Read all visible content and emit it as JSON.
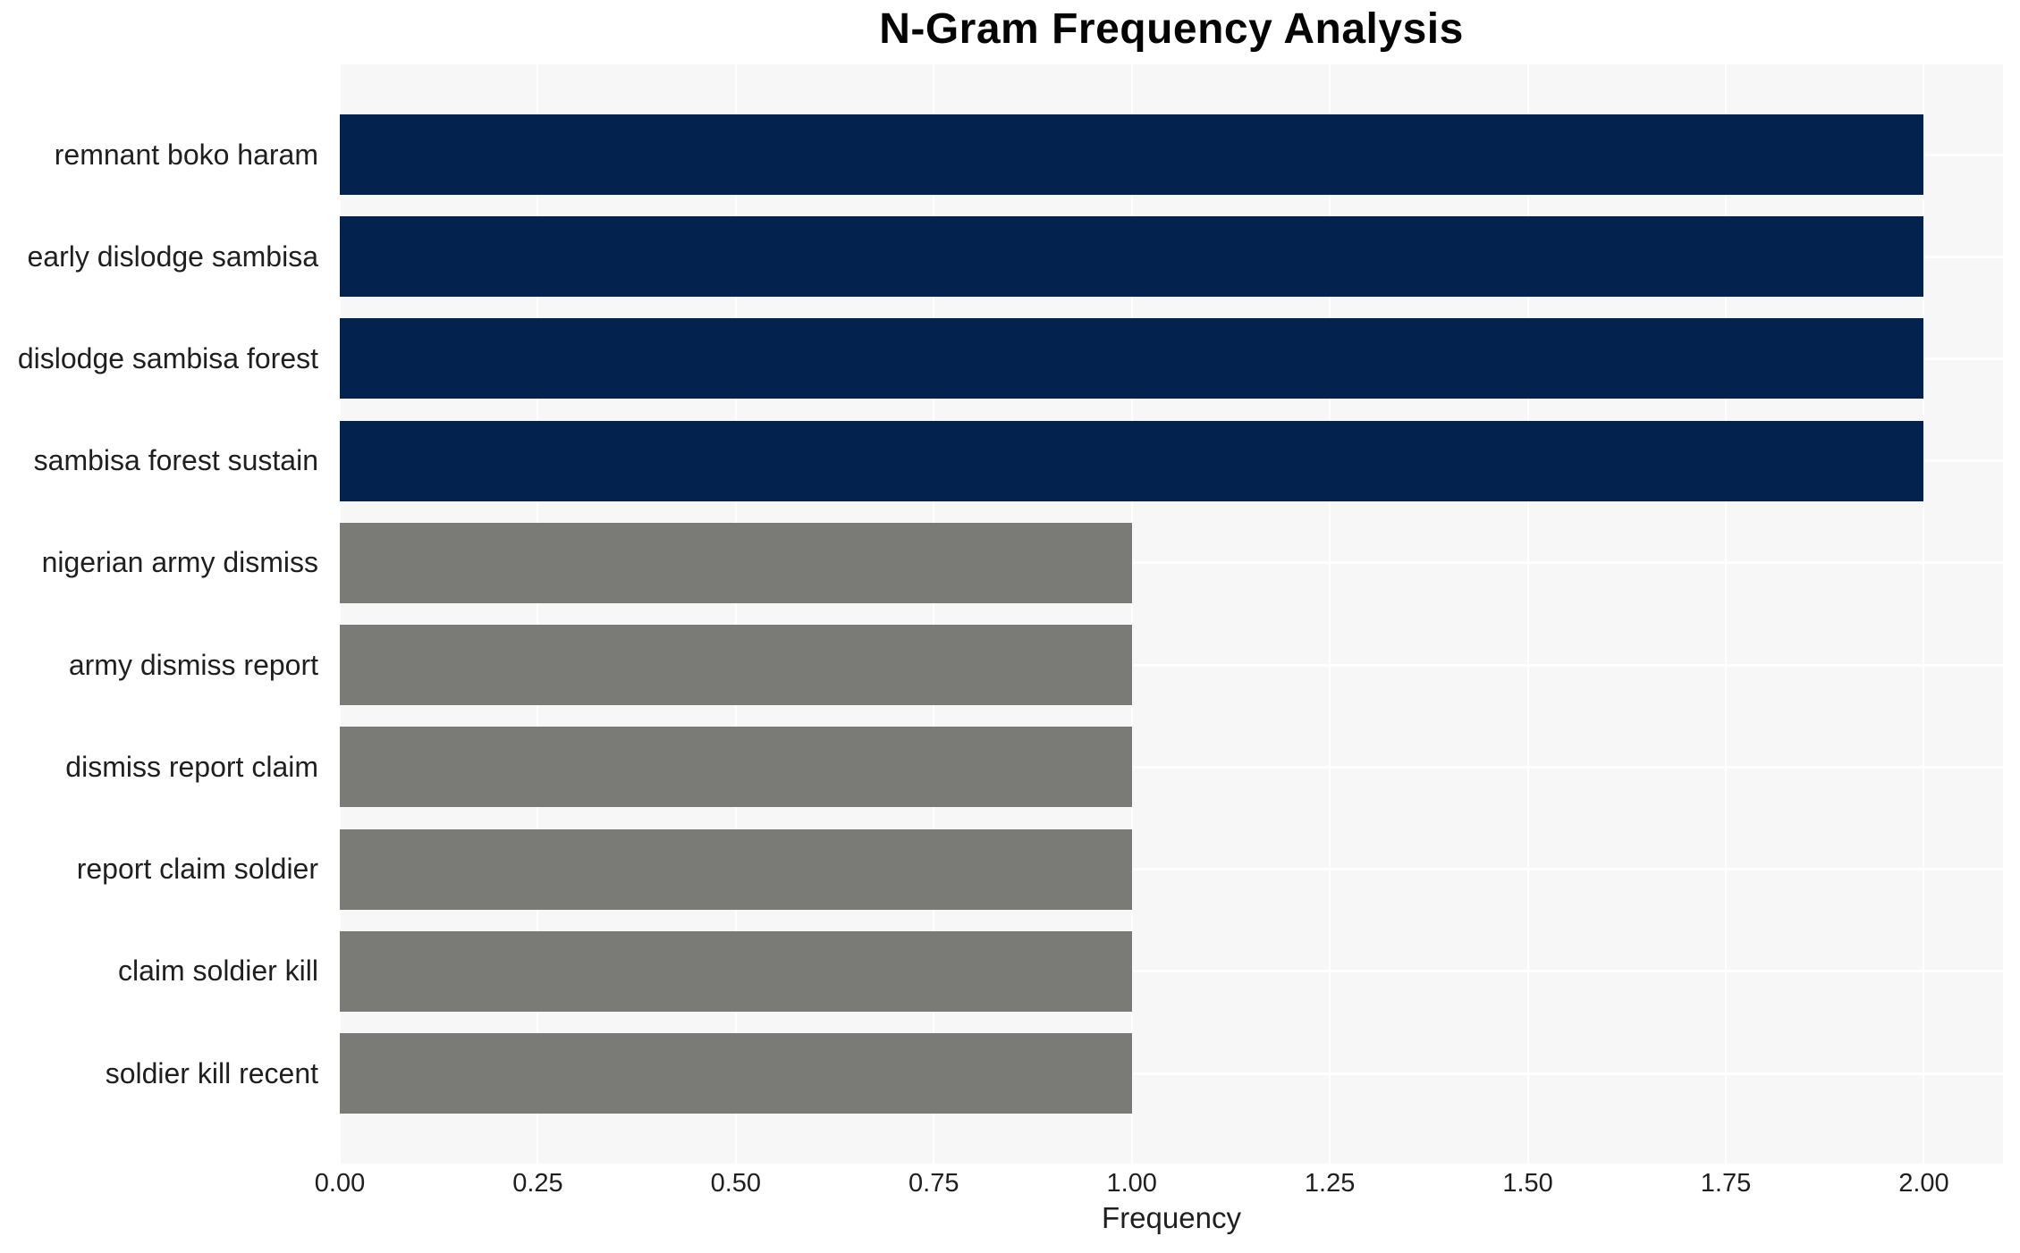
{
  "chart_data": {
    "type": "bar",
    "orientation": "horizontal",
    "title": "N-Gram Frequency Analysis",
    "xlabel": "Frequency",
    "ylabel": "",
    "categories": [
      "remnant boko haram",
      "early dislodge sambisa",
      "dislodge sambisa forest",
      "sambisa forest sustain",
      "nigerian army dismiss",
      "army dismiss report",
      "dismiss report claim",
      "report claim soldier",
      "claim soldier kill",
      "soldier kill recent"
    ],
    "values": [
      2,
      2,
      2,
      2,
      1,
      1,
      1,
      1,
      1,
      1
    ],
    "bar_colors": [
      "#03234e",
      "#03234e",
      "#03234e",
      "#03234e",
      "#7a7a76",
      "#7a7a76",
      "#7a7a76",
      "#7a7a76",
      "#7a7a76",
      "#7a7a76"
    ],
    "xlim": [
      0,
      2.1
    ],
    "xticks": {
      "values": [
        0,
        0.25,
        0.5,
        0.75,
        1.0,
        1.25,
        1.5,
        1.75,
        2.0
      ],
      "labels": [
        "0.00",
        "0.25",
        "0.50",
        "0.75",
        "1.00",
        "1.25",
        "1.50",
        "1.75",
        "2.00"
      ]
    },
    "grid": "on",
    "legend": "none",
    "colors": {
      "navy": "#03234e",
      "gray": "#7a7a76",
      "plot_background": "#f7f7f7",
      "grid_color": "#ffffff",
      "text_color": "#1f1f1f"
    }
  }
}
